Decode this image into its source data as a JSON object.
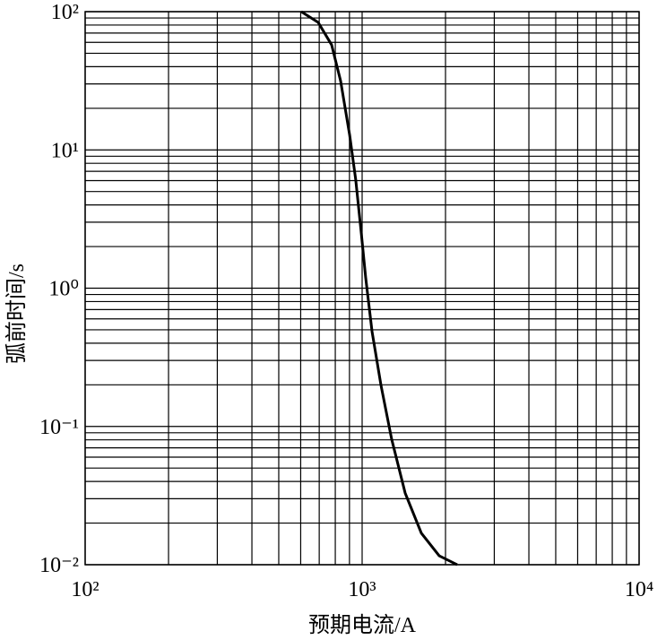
{
  "chart_data": {
    "type": "line",
    "xlabel": "预期电流/A",
    "ylabel": "弧前时间/s",
    "x": [
      603,
      694,
      776,
      836,
      901,
      948,
      993,
      1030,
      1086,
      1170,
      1278,
      1430,
      1636,
      1898,
      2203
    ],
    "values": [
      100,
      83.6,
      57.5,
      31.6,
      12.9,
      6.1,
      2.5,
      1.19,
      0.485,
      0.198,
      0.081,
      0.033,
      0.0169,
      0.0116,
      0.01
    ],
    "color": "#000000",
    "xscale": "log",
    "yscale": "log",
    "xlim": [
      100,
      10000
    ],
    "ylim": [
      0.01,
      100
    ],
    "xticks": [
      {
        "value": 100,
        "label": "10²"
      },
      {
        "value": 1000,
        "label": "10³"
      },
      {
        "value": 10000,
        "label": "10⁴"
      }
    ],
    "yticks": [
      {
        "value": 0.01,
        "label": "10⁻²"
      },
      {
        "value": 0.1,
        "label": "10⁻¹"
      },
      {
        "value": 1,
        "label": "10⁰"
      },
      {
        "value": 10,
        "label": "10¹"
      },
      {
        "value": 100,
        "label": "10²"
      }
    ],
    "grid": true,
    "minor_grid": true
  }
}
